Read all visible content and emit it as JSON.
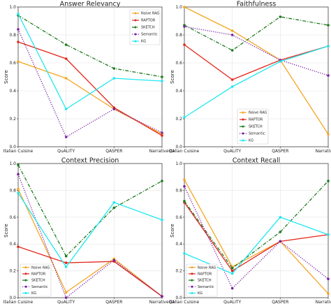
{
  "chart_data": [
    {
      "type": "line",
      "title": "Answer Relevancy",
      "ylabel": "Score",
      "categories": [
        "Italian Cuisine",
        "QuALITY",
        "QASPER",
        "NarrativeQA"
      ],
      "ylim": [
        0.0,
        1.0
      ],
      "yticks": [
        "0.0",
        "0.2",
        "0.4",
        "0.6",
        "0.8",
        "1.0"
      ],
      "legend_position": "top-right",
      "grid": true,
      "series": [
        {
          "name": "Naive RAG",
          "values": [
            0.61,
            0.49,
            0.27,
            0.09
          ]
        },
        {
          "name": "RAPTOR",
          "values": [
            0.75,
            0.63,
            0.28,
            0.08
          ]
        },
        {
          "name": "SKETCH",
          "values": [
            0.94,
            0.73,
            0.56,
            0.5
          ]
        },
        {
          "name": "Semantic",
          "values": [
            0.84,
            0.07,
            0.27,
            0.1
          ]
        },
        {
          "name": "KG",
          "values": [
            0.95,
            0.27,
            0.49,
            0.47
          ]
        }
      ]
    },
    {
      "type": "line",
      "title": "Faithfulness",
      "ylabel": "Score",
      "categories": [
        "Italian Cuisine",
        "QuALITY",
        "QASPER",
        "NarrativeQA"
      ],
      "ylim": [
        0.0,
        1.0
      ],
      "yticks": [
        "0.0",
        "0.2",
        "0.4",
        "0.6",
        "0.8",
        "1.0"
      ],
      "legend_position": "bottom-center",
      "grid": true,
      "series": [
        {
          "name": "Naive RAG",
          "values": [
            1.0,
            0.83,
            0.62,
            0.09
          ]
        },
        {
          "name": "RAPTOR",
          "values": [
            0.73,
            0.48,
            0.62,
            0.72
          ]
        },
        {
          "name": "SKETCH",
          "values": [
            0.87,
            0.69,
            0.93,
            0.87
          ]
        },
        {
          "name": "Semantic",
          "values": [
            0.86,
            0.8,
            0.62,
            0.51
          ]
        },
        {
          "name": "KG",
          "values": [
            0.21,
            0.43,
            0.61,
            0.72
          ]
        }
      ]
    },
    {
      "type": "line",
      "title": "Context Precision",
      "ylabel": "Score",
      "categories": [
        "Italian Cuisine",
        "QuALITY",
        "QASPER",
        "NarrativeQA"
      ],
      "ylim": [
        0.0,
        1.0
      ],
      "yticks": [
        "0.0",
        "0.2",
        "0.4",
        "0.6",
        "0.8",
        "1.0"
      ],
      "legend_position": "bottom-left",
      "grid": true,
      "series": [
        {
          "name": "Naive RAG",
          "values": [
            0.81,
            0.04,
            0.29,
            0.01
          ]
        },
        {
          "name": "RAPTOR",
          "values": [
            0.38,
            0.26,
            0.27,
            0.01
          ]
        },
        {
          "name": "SKETCH",
          "values": [
            0.99,
            0.31,
            0.67,
            0.87
          ]
        },
        {
          "name": "Semantic",
          "values": [
            0.92,
            0.0,
            0.28,
            0.01
          ]
        },
        {
          "name": "KG",
          "values": [
            0.78,
            0.23,
            0.71,
            0.58
          ]
        }
      ]
    },
    {
      "type": "line",
      "title": "Context Recall",
      "ylabel": "Score",
      "categories": [
        "Italian Cuisine",
        "QuALITY",
        "QASPER",
        "NarrativeQA"
      ],
      "ylim": [
        0.0,
        1.0
      ],
      "yticks": [
        "0.0",
        "0.2",
        "0.4",
        "0.6",
        "0.8",
        "1.0"
      ],
      "legend_position": "bottom-left",
      "grid": true,
      "series": [
        {
          "name": "Naive RAG",
          "values": [
            0.88,
            0.23,
            0.42,
            0.03
          ]
        },
        {
          "name": "RAPTOR",
          "values": [
            0.71,
            0.2,
            0.42,
            0.47
          ]
        },
        {
          "name": "SKETCH",
          "values": [
            0.72,
            0.22,
            0.49,
            0.87
          ]
        },
        {
          "name": "Semantic",
          "values": [
            0.83,
            0.07,
            0.42,
            0.14
          ]
        },
        {
          "name": "KG",
          "values": [
            0.33,
            0.18,
            0.6,
            0.47
          ]
        }
      ]
    }
  ],
  "series_styles": [
    {
      "color": "#f5a623",
      "dash": "solid",
      "marker": "circle"
    },
    {
      "color": "#e3261b",
      "dash": "solid",
      "marker": "circle"
    },
    {
      "color": "#1d7a1d",
      "dash": "dashdot",
      "marker": "circle"
    },
    {
      "color": "#7a1fa2",
      "dash": "dotted",
      "marker": "circle"
    },
    {
      "color": "#1ee8f0",
      "dash": "solid",
      "marker": "circle"
    }
  ]
}
